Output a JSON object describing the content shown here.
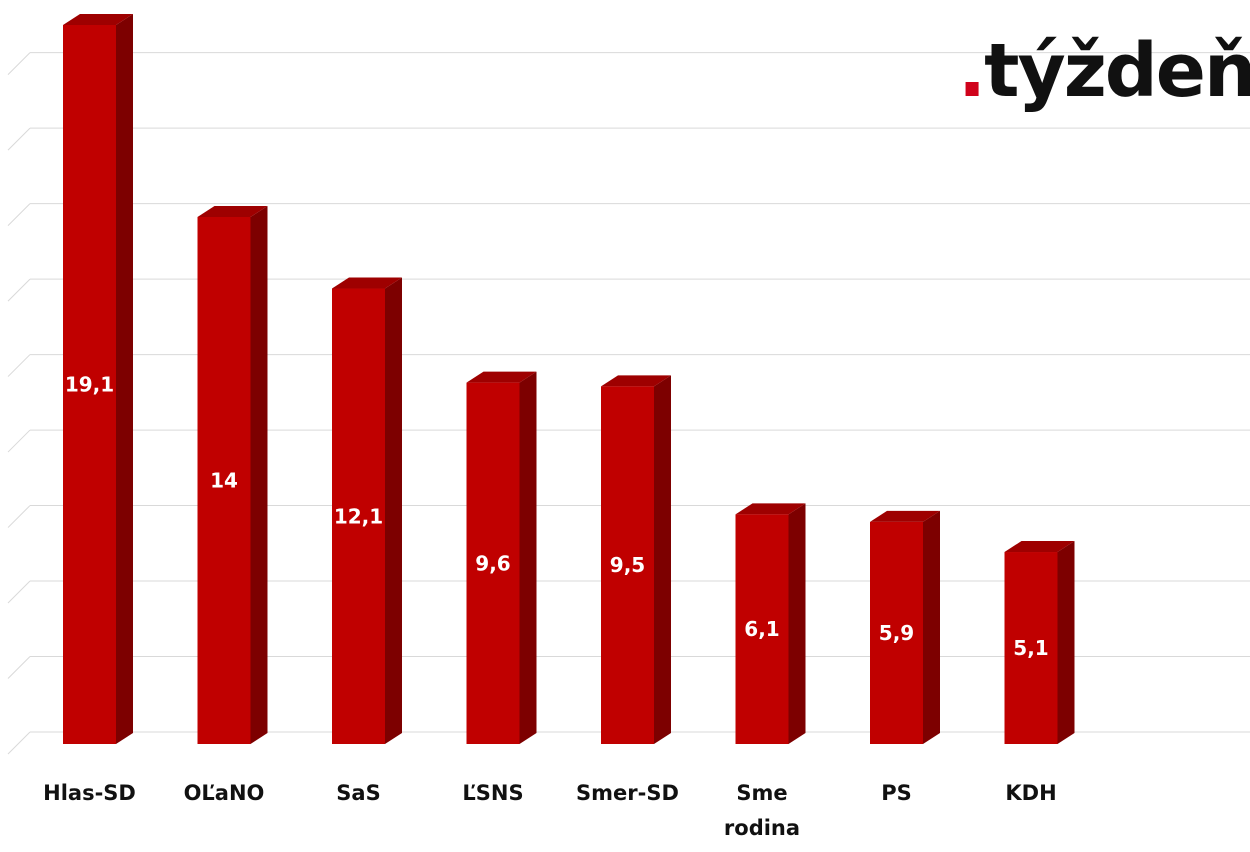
{
  "brand": {
    "dot": ".",
    "name": "týždeň",
    "dot_color": "#d0021b"
  },
  "colors": {
    "bar_front": "#c00000",
    "bar_side": "#7d0000",
    "bar_top": "#9e0000",
    "grid": "#d9d9d9",
    "label": "#ffffff"
  },
  "chart_data": {
    "type": "bar",
    "style": "3d-column",
    "categories": [
      "Hlas-SD",
      "OĽaNO",
      "SaS",
      "ĽSNS",
      "Smer-SD",
      "Sme rodina",
      "PS",
      "KDH"
    ],
    "category_lines": [
      [
        "Hlas-SD"
      ],
      [
        "OĽaNO"
      ],
      [
        "SaS"
      ],
      [
        "ĽSNS"
      ],
      [
        "Smer-SD"
      ],
      [
        "Sme",
        "rodina"
      ],
      [
        "PS"
      ],
      [
        "KDH"
      ]
    ],
    "values": [
      19.1,
      14,
      12.1,
      9.6,
      9.5,
      6.1,
      5.9,
      5.1
    ],
    "data_labels": [
      "19,1",
      "14",
      "12,1",
      "9,6",
      "9,5",
      "6,1",
      "5,9",
      "5,1"
    ],
    "ylim": [
      0,
      19.1
    ],
    "grid": true,
    "legend": "none",
    "title": "",
    "xlabel": "",
    "ylabel": ""
  }
}
